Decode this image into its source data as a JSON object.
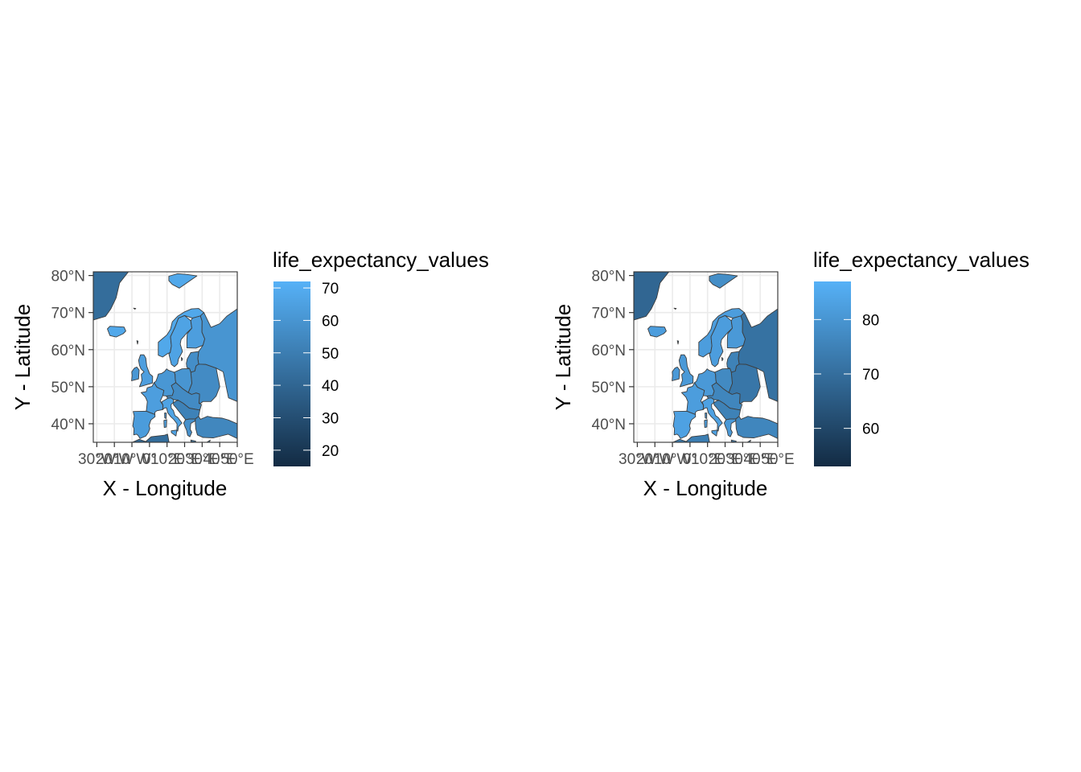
{
  "chart_data": [
    {
      "type": "choropleth",
      "xlabel": "X - Longitude",
      "ylabel": "Y - Latitude",
      "x_ticks": [
        "30°W",
        "20°W",
        "10°W",
        "0°",
        "10°E",
        "20°E",
        "30°E",
        "40°E",
        "50°E"
      ],
      "x_tick_values": [
        -30,
        -20,
        -10,
        0,
        10,
        20,
        30,
        40,
        50
      ],
      "y_ticks": [
        "40°N",
        "50°N",
        "60°N",
        "70°N",
        "80°N"
      ],
      "y_tick_values": [
        40,
        50,
        60,
        70,
        80
      ],
      "xlim": [
        -32,
        50
      ],
      "ylim": [
        35,
        81
      ],
      "grid": true,
      "legend": {
        "title": "life_expectancy_values",
        "placement": "right",
        "range": [
          15,
          72
        ],
        "breaks": [
          20,
          30,
          40,
          50,
          60,
          70
        ],
        "labels": [
          "20",
          "30",
          "40",
          "50",
          "60",
          "70"
        ],
        "low_color": "#132B43",
        "high_color": "#56B1F7"
      },
      "regions": {
        "greenland": 43,
        "svalbard": 68,
        "iceland": 68,
        "ireland": 61,
        "uk": 64,
        "norway": 68,
        "sweden": 66,
        "finland": 64,
        "russia": 60,
        "baltics": 57,
        "belarus_ukraine": 56,
        "france": 64,
        "iberia": 63,
        "germany_benelux": 61,
        "poland": 60,
        "central_east": 56,
        "italy": 66,
        "balkans": 52,
        "greece": 58,
        "turkey": 54,
        "north_africa": 43
      }
    },
    {
      "type": "choropleth",
      "xlabel": "X - Longitude",
      "ylabel": "Y - Latitude",
      "x_ticks": [
        "30°W",
        "20°W",
        "10°W",
        "0°",
        "10°E",
        "20°E",
        "30°E",
        "40°E",
        "50°E"
      ],
      "x_tick_values": [
        -30,
        -20,
        -10,
        0,
        10,
        20,
        30,
        40,
        50
      ],
      "y_ticks": [
        "40°N",
        "50°N",
        "60°N",
        "70°N",
        "80°N"
      ],
      "y_tick_values": [
        40,
        50,
        60,
        70,
        80
      ],
      "xlim": [
        -32,
        50
      ],
      "ylim": [
        35,
        81
      ],
      "grid": true,
      "legend": {
        "title": "life_expectancy_values",
        "placement": "right",
        "range": [
          53,
          87
        ],
        "breaks": [
          60,
          70,
          80
        ],
        "labels": [
          "60",
          "70",
          "80"
        ],
        "low_color": "#132B43",
        "high_color": "#56B1F7"
      },
      "regions": {
        "greenland": 68,
        "svalbard": 78,
        "iceland": 82,
        "ireland": 81,
        "uk": 81,
        "norway": 82,
        "sweden": 82,
        "finland": 81,
        "russia": 71,
        "baltics": 75,
        "belarus_ukraine": 72,
        "france": 82,
        "iberia": 83,
        "germany_benelux": 81,
        "poland": 77,
        "central_east": 76,
        "italy": 83,
        "balkans": 75,
        "greece": 81,
        "turkey": 76,
        "north_africa": 74
      }
    }
  ]
}
